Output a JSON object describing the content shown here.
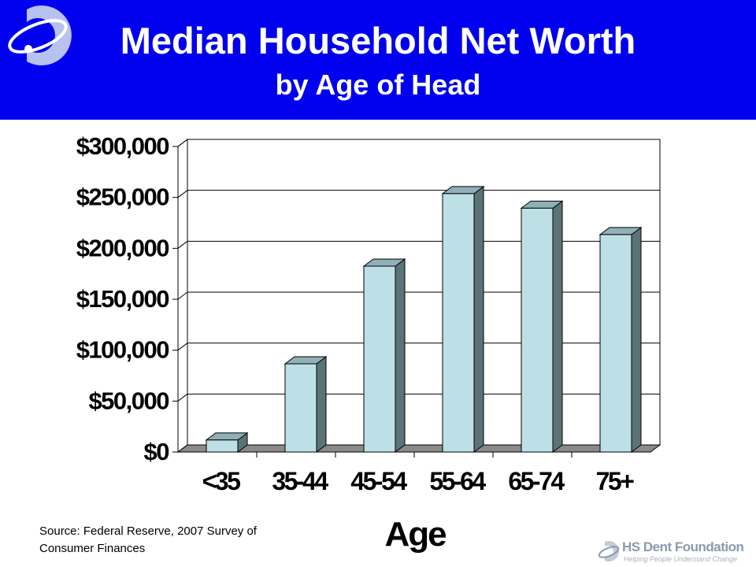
{
  "header": {
    "title": "Median Household Net Worth",
    "subtitle": "by Age of Head"
  },
  "source": {
    "line1": "Source: Federal Reserve, 2007 Survey of",
    "line2": "Consumer Finances"
  },
  "footer": {
    "brand": "HS Dent Foundation",
    "tagline": "Helping People Understand Change"
  },
  "chart_data": {
    "type": "bar",
    "title": "Median Household Net Worth",
    "subtitle": "by Age of Head",
    "xlabel": "Age",
    "ylabel": "",
    "categories": [
      "<35",
      "35-44",
      "45-54",
      "55-64",
      "65-74",
      "75+"
    ],
    "values": [
      11800,
      86600,
      182500,
      253700,
      239400,
      213500
    ],
    "ylim": [
      0,
      300000
    ],
    "yticks": [
      0,
      50000,
      100000,
      150000,
      200000,
      250000,
      300000
    ],
    "ytick_labels": [
      "$0",
      "$50,000",
      "$100,000",
      "$150,000",
      "$200,000",
      "$250,000",
      "$300,000"
    ],
    "grid": true,
    "legend": "none",
    "colors": {
      "bar_front": "#bde0e6",
      "bar_top": "#8fb0b6",
      "bar_side": "#5b7377",
      "floor": "#8a8a8a"
    }
  }
}
